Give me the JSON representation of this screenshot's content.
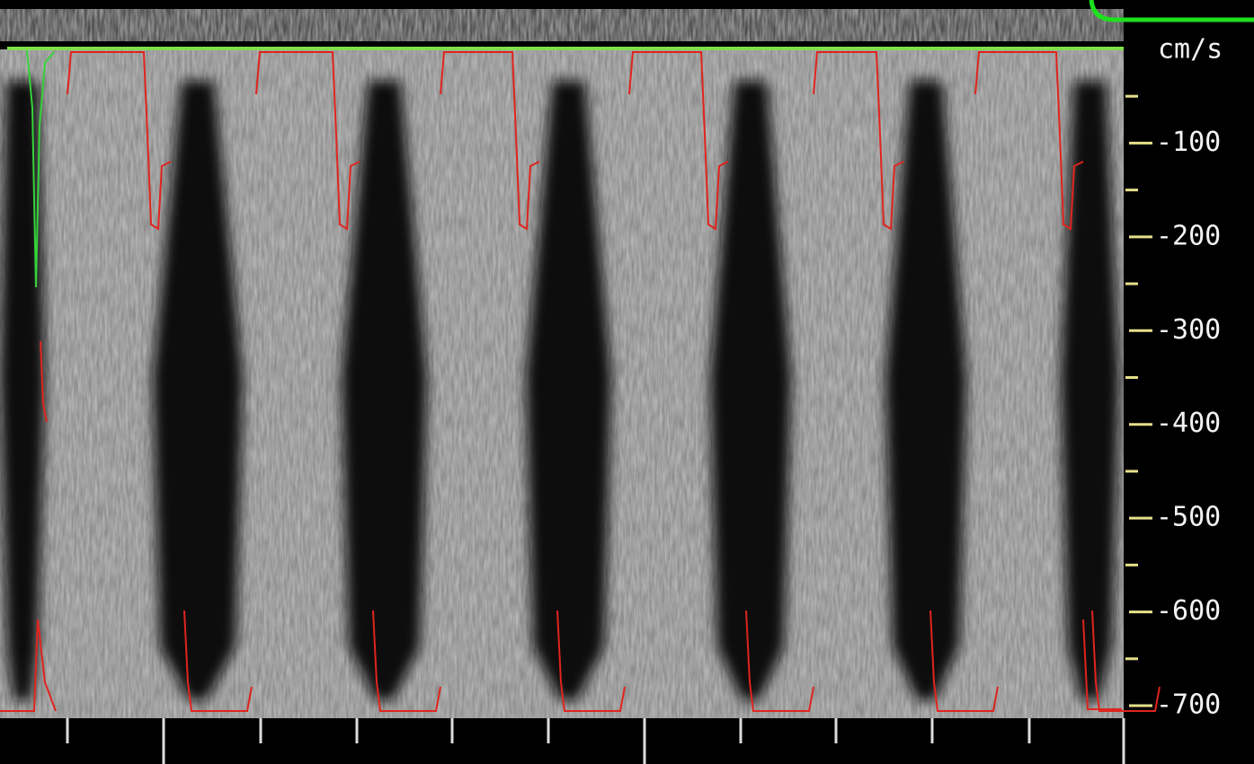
{
  "axis": {
    "unit": "cm/s",
    "ylim": [
      -700,
      0
    ],
    "ticks": [
      -100,
      -200,
      -300,
      -400,
      -500,
      -600,
      -700
    ],
    "minor_ticks": [
      -50,
      -150,
      -250,
      -350,
      -450,
      -550,
      -650
    ]
  }
}
